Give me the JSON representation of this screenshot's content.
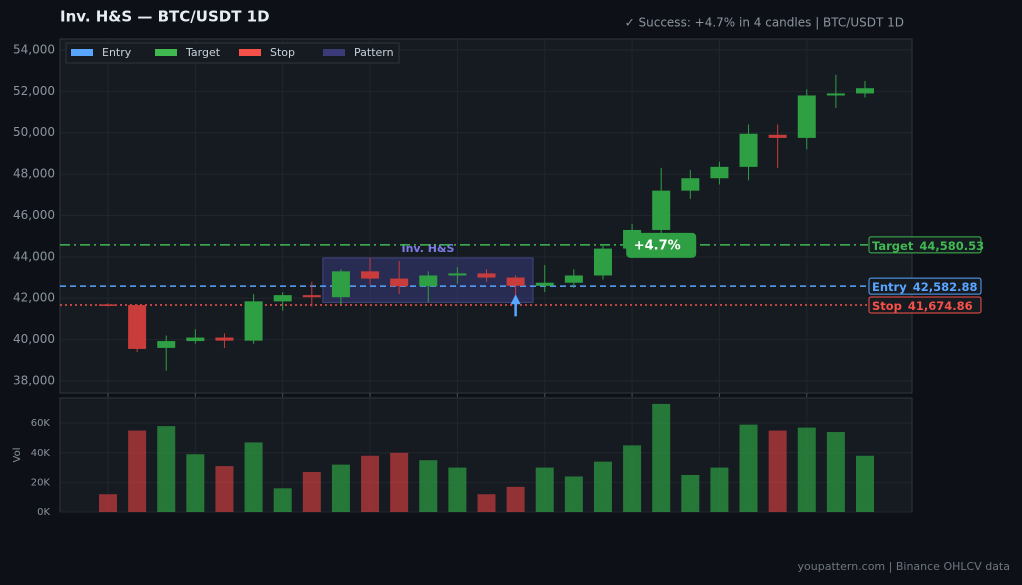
{
  "chart_data": {
    "type": "candlestick",
    "title": "Inv. H&S  —  BTC/USDT 1D",
    "subtitle": "✓ Success: +4.7% in 4 candles  |  BTC/USDT 1D",
    "footer": "youpattern.com  |  Binance OHLCV data",
    "open": [
      41700,
      41670,
      39600,
      39930,
      40100,
      39950,
      41850,
      42150,
      42050,
      43300,
      42950,
      42580,
      43100,
      43200,
      43000,
      42600,
      42750,
      43100,
      44400,
      45300,
      47200,
      47800,
      48350,
      49900,
      49750,
      51800,
      51900
    ],
    "high": [
      41750,
      41700,
      40200,
      40500,
      40300,
      42200,
      42300,
      42800,
      43400,
      43950,
      43800,
      43300,
      43500,
      43400,
      43100,
      43600,
      43400,
      44600,
      45600,
      48300,
      48200,
      48600,
      50400,
      50400,
      52100,
      52800,
      52500
    ],
    "low": [
      41600,
      39400,
      38500,
      39800,
      39600,
      39800,
      41400,
      41600,
      41700,
      42650,
      42200,
      41800,
      42700,
      42800,
      41900,
      42300,
      42500,
      42900,
      44000,
      44900,
      46800,
      47500,
      47700,
      48300,
      49200,
      51200,
      51700
    ],
    "close": [
      41650,
      39550,
      39930,
      40100,
      39950,
      41850,
      42150,
      42050,
      43300,
      42950,
      42580,
      43100,
      43200,
      43000,
      42600,
      42750,
      43100,
      44400,
      45300,
      47200,
      47800,
      48350,
      49950,
      49750,
      51800,
      51900,
      52150
    ],
    "volume": [
      12000,
      55000,
      58000,
      39000,
      31000,
      47000,
      16000,
      27000,
      32000,
      38000,
      40000,
      35000,
      30000,
      12000,
      17000,
      30000,
      24000,
      34000,
      45000,
      73000,
      25000,
      30000,
      59000,
      55000,
      57000,
      54000,
      38000
    ],
    "up_color": "#2ea043",
    "down_color": "#c93c3c",
    "ylim": [
      37420,
      54530
    ],
    "yticks": [
      {
        "value": 38000,
        "label": "38,000"
      },
      {
        "value": 40000,
        "label": "40,000"
      },
      {
        "value": 42000,
        "label": "42,000"
      },
      {
        "value": 44000,
        "label": "44,000"
      },
      {
        "value": 46000,
        "label": "46,000"
      },
      {
        "value": 48000,
        "label": "48,000"
      },
      {
        "value": 50000,
        "label": "50,000"
      },
      {
        "value": 52000,
        "label": "52,000"
      },
      {
        "value": 54000,
        "label": "54,000"
      }
    ],
    "volume_axis_label": "Vol",
    "vlim": [
      0,
      77000
    ],
    "vticks": [
      {
        "value": 0,
        "label": "0K"
      },
      {
        "value": 20000,
        "label": "20K"
      },
      {
        "value": 40000,
        "label": "40K"
      },
      {
        "value": 60000,
        "label": "60K"
      }
    ],
    "grid": true,
    "levels": [
      {
        "name": "Entry",
        "value": 42582.88,
        "value_label": "42,582.88",
        "color": "#58a6ff",
        "dash": "6 4"
      },
      {
        "name": "Target",
        "value": 44580.53,
        "value_label": "44,580.53",
        "color": "#3fb950",
        "dash": "10 4 2 4"
      },
      {
        "name": "Stop",
        "value": 41674.86,
        "value_label": "41,674.86",
        "color": "#f85149",
        "dash": "2 3"
      }
    ],
    "pattern": {
      "name": "Pattern",
      "label": "Inv. H&S",
      "start": 8,
      "end": 14,
      "top": 43950,
      "bottom": 41800,
      "color": "#3b3b7a"
    },
    "entry_index": 14,
    "annotation": {
      "text": "+4.7%",
      "index": 19
    }
  }
}
